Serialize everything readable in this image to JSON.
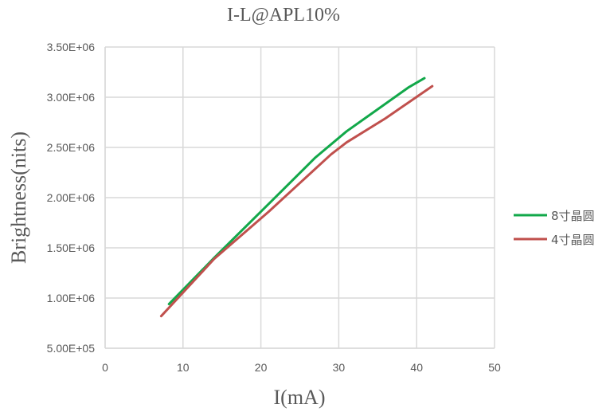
{
  "chart_data": {
    "type": "line",
    "title": "I-L@APL10%",
    "xlabel": "I(mA)",
    "ylabel": "Brightness(nits)",
    "xlim": [
      0,
      50
    ],
    "ylim": [
      500000,
      3500000
    ],
    "x_ticks": [
      0,
      10,
      20,
      30,
      40,
      50
    ],
    "x_tick_labels": [
      "0",
      "10",
      "20",
      "30",
      "40",
      "50"
    ],
    "y_ticks": [
      500000,
      1000000,
      1500000,
      2000000,
      2500000,
      3000000,
      3500000
    ],
    "y_tick_labels": [
      "5.00E+05",
      "1.00E+06",
      "1.50E+06",
      "2.00E+06",
      "2.50E+06",
      "3.00E+06",
      "3.50E+06"
    ],
    "grid": true,
    "legend_position": "right",
    "series": [
      {
        "name": "8寸晶圆",
        "color": "#12a84a",
        "x": [
          8.2,
          14,
          20,
          27,
          31,
          35,
          39,
          41
        ],
        "y": [
          940000,
          1400000,
          1860000,
          2400000,
          2660000,
          2880000,
          3100000,
          3190000
        ]
      },
      {
        "name": "4寸晶圆",
        "color": "#c0504d",
        "x": [
          7.2,
          14,
          21,
          29,
          31,
          36,
          42
        ],
        "y": [
          820000,
          1390000,
          1860000,
          2430000,
          2550000,
          2790000,
          3110000
        ]
      }
    ]
  }
}
